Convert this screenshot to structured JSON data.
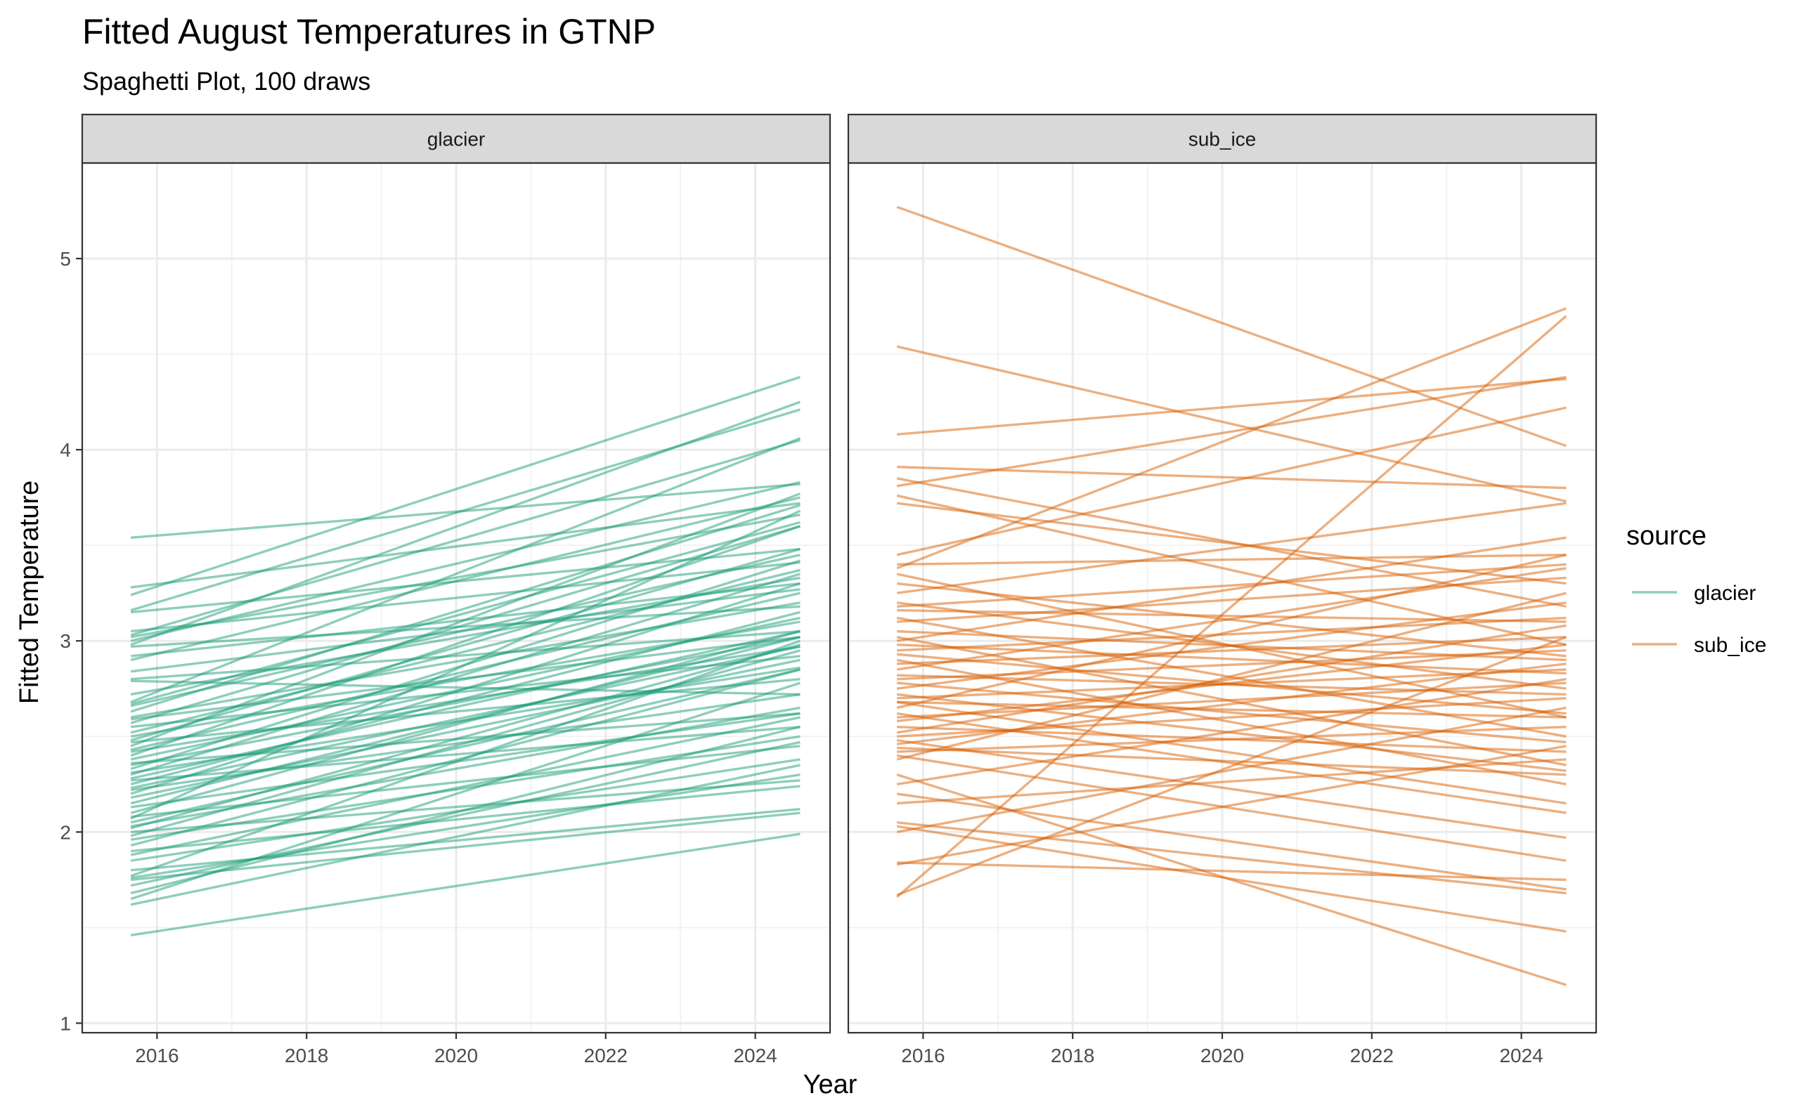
{
  "chart_data": {
    "type": "line",
    "title": "Fitted August Temperatures in GTNP",
    "subtitle": "Spaghetti Plot, 100 draws",
    "xlabel": "Year",
    "ylabel": "Fitted Temperature",
    "xlim": [
      2015.0,
      2025.0
    ],
    "ylim": [
      0.95,
      5.5
    ],
    "x_ticks": [
      2016,
      2018,
      2020,
      2022,
      2024
    ],
    "x_tick_labels": [
      "2016",
      "2018",
      "2020",
      "2022",
      "2024"
    ],
    "y_ticks": [
      1,
      2,
      3,
      4,
      5
    ],
    "y_tick_labels": [
      "1",
      "2",
      "3",
      "4",
      "5"
    ],
    "x_range": [
      2015.65,
      2024.6
    ],
    "grid": true,
    "legend": {
      "title": "source",
      "position": "right",
      "entries": [
        {
          "label": "glacier",
          "color": "#1b9e77"
        },
        {
          "label": "sub_ice",
          "color": "#d95f02"
        }
      ]
    },
    "panels": [
      {
        "name": "glacier",
        "color": "#1b9e77",
        "description_of_lines": "each line: [value at 2015.65, value at 2024.6]",
        "lines": [
          [
            3.54,
            3.82
          ],
          [
            3.28,
            3.72
          ],
          [
            3.24,
            4.38
          ],
          [
            3.16,
            4.21
          ],
          [
            3.15,
            3.48
          ],
          [
            3.05,
            3.41
          ],
          [
            3.03,
            4.05
          ],
          [
            3.02,
            3.66
          ],
          [
            3.0,
            3.83
          ],
          [
            2.98,
            4.25
          ],
          [
            2.97,
            3.18
          ],
          [
            2.92,
            3.3
          ],
          [
            2.9,
            3.75
          ],
          [
            2.84,
            3.27
          ],
          [
            2.8,
            3.05
          ],
          [
            2.79,
            2.72
          ],
          [
            2.72,
            3.33
          ],
          [
            2.68,
            4.06
          ],
          [
            2.67,
            3.62
          ],
          [
            2.66,
            3.45
          ],
          [
            2.63,
            3.71
          ],
          [
            2.6,
            3.2
          ],
          [
            2.59,
            3.02
          ],
          [
            2.57,
            3.6
          ],
          [
            2.55,
            2.92
          ],
          [
            2.52,
            3.37
          ],
          [
            2.5,
            3.1
          ],
          [
            2.48,
            3.48
          ],
          [
            2.47,
            2.8
          ],
          [
            2.45,
            3.77
          ],
          [
            2.43,
            3.25
          ],
          [
            2.42,
            2.97
          ],
          [
            2.4,
            3.6
          ],
          [
            2.38,
            3.12
          ],
          [
            2.36,
            2.62
          ],
          [
            2.35,
            3.02
          ],
          [
            2.33,
            3.42
          ],
          [
            2.31,
            2.86
          ],
          [
            2.3,
            3.35
          ],
          [
            2.28,
            3.05
          ],
          [
            2.27,
            2.55
          ],
          [
            2.25,
            3.15
          ],
          [
            2.23,
            2.97
          ],
          [
            2.22,
            2.72
          ],
          [
            2.2,
            3.3
          ],
          [
            2.18,
            2.9
          ],
          [
            2.15,
            3.02
          ],
          [
            2.13,
            2.62
          ],
          [
            2.1,
            3.05
          ],
          [
            2.08,
            2.45
          ],
          [
            2.07,
            3.68
          ],
          [
            2.05,
            2.85
          ],
          [
            2.03,
            2.65
          ],
          [
            2.02,
            2.98
          ],
          [
            2.0,
            2.27
          ],
          [
            1.98,
            2.95
          ],
          [
            1.96,
            2.5
          ],
          [
            1.93,
            2.85
          ],
          [
            1.9,
            2.24
          ],
          [
            1.88,
            2.6
          ],
          [
            1.85,
            2.38
          ],
          [
            1.8,
            2.12
          ],
          [
            1.77,
            3.0
          ],
          [
            1.75,
            2.1
          ],
          [
            1.72,
            2.47
          ],
          [
            1.68,
            2.55
          ],
          [
            1.65,
            2.78
          ],
          [
            1.62,
            2.35
          ],
          [
            1.46,
            1.99
          ],
          [
            1.76,
            2.3
          ]
        ]
      },
      {
        "name": "sub_ice",
        "color": "#d95f02",
        "description_of_lines": "each line: [value at 2015.65, value at 2024.6]",
        "lines": [
          [
            5.27,
            4.02
          ],
          [
            4.54,
            3.73
          ],
          [
            4.08,
            4.37
          ],
          [
            3.91,
            3.8
          ],
          [
            3.85,
            3.18
          ],
          [
            3.81,
            4.38
          ],
          [
            3.76,
            2.98
          ],
          [
            3.72,
            3.3
          ],
          [
            3.45,
            4.22
          ],
          [
            3.4,
            3.45
          ],
          [
            3.38,
            4.74
          ],
          [
            3.35,
            2.6
          ],
          [
            3.3,
            2.92
          ],
          [
            3.25,
            3.72
          ],
          [
            3.2,
            2.75
          ],
          [
            3.18,
            3.4
          ],
          [
            3.16,
            3.1
          ],
          [
            3.12,
            2.5
          ],
          [
            3.1,
            3.33
          ],
          [
            3.05,
            2.9
          ],
          [
            3.02,
            2.35
          ],
          [
            3.0,
            3.54
          ],
          [
            2.98,
            2.83
          ],
          [
            2.95,
            3.12
          ],
          [
            2.93,
            2.62
          ],
          [
            2.9,
            2.25
          ],
          [
            2.88,
            3.02
          ],
          [
            2.85,
            3.38
          ],
          [
            2.82,
            2.72
          ],
          [
            2.8,
            2.95
          ],
          [
            2.78,
            2.47
          ],
          [
            2.75,
            3.2
          ],
          [
            2.72,
            2.32
          ],
          [
            2.7,
            2.85
          ],
          [
            2.68,
            2.6
          ],
          [
            2.65,
            3.45
          ],
          [
            2.62,
            2.1
          ],
          [
            2.6,
            2.78
          ],
          [
            2.58,
            2.98
          ],
          [
            2.55,
            2.42
          ],
          [
            2.52,
            3.08
          ],
          [
            2.5,
            2.7
          ],
          [
            2.48,
            1.97
          ],
          [
            2.46,
            2.88
          ],
          [
            2.44,
            2.3
          ],
          [
            2.42,
            2.55
          ],
          [
            2.4,
            1.85
          ],
          [
            2.38,
            3.25
          ],
          [
            2.3,
            1.2
          ],
          [
            2.25,
            2.8
          ],
          [
            2.2,
            1.7
          ],
          [
            2.15,
            2.38
          ],
          [
            2.05,
            1.68
          ],
          [
            2.03,
            1.48
          ],
          [
            2.0,
            2.65
          ],
          [
            1.84,
            1.75
          ],
          [
            1.67,
            3.02
          ],
          [
            1.66,
            4.7
          ],
          [
            1.83,
            2.45
          ],
          [
            2.68,
            2.15
          ]
        ]
      }
    ]
  }
}
